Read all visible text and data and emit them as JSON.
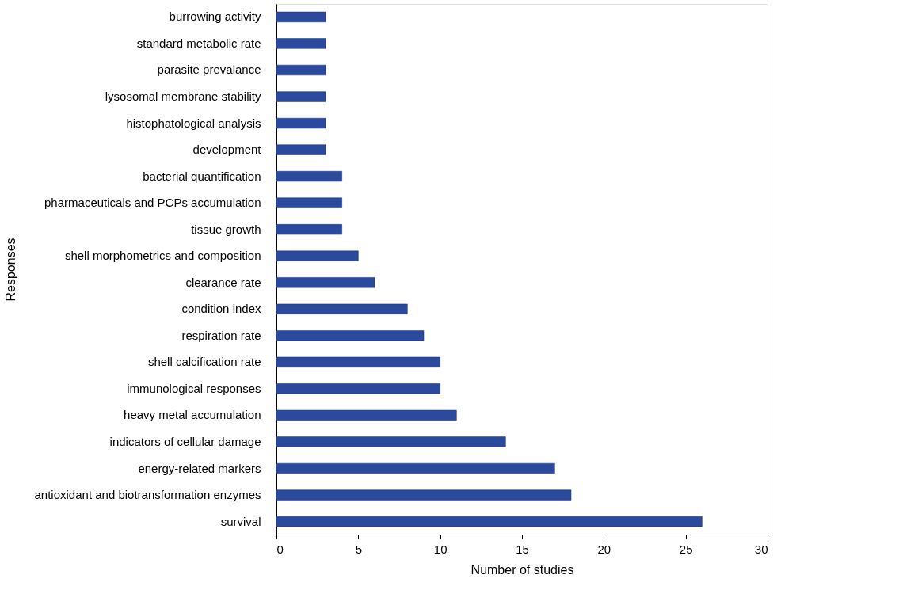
{
  "chart_data": {
    "type": "bar",
    "orientation": "horizontal",
    "xlabel": "Number of studies",
    "ylabel": "Responses",
    "categories": [
      "burrowing activity",
      "standard metabolic rate",
      "parasite prevalance",
      "lysosomal membrane stability",
      "histophatological analysis",
      "development",
      "bacterial quantification",
      "pharmaceuticals and PCPs accumulation",
      "tissue growth",
      "shell morphometrics and composition",
      "clearance rate",
      "condition index",
      "respiration rate",
      "shell calcification rate",
      "immunological responses",
      "heavy metal accumulation",
      "indicators of cellular damage",
      "energy-related markers",
      "antioxidant and biotransformation enzymes",
      "survival"
    ],
    "values": [
      3,
      3,
      3,
      3,
      3,
      3,
      4,
      4,
      4,
      5,
      6,
      8,
      9,
      10,
      10,
      11,
      14,
      17,
      18,
      26
    ],
    "color": "#2b4a9e",
    "xlim": [
      0,
      30
    ],
    "xticks": [
      0,
      5,
      10,
      15,
      20,
      25,
      30
    ],
    "grid": false
  }
}
